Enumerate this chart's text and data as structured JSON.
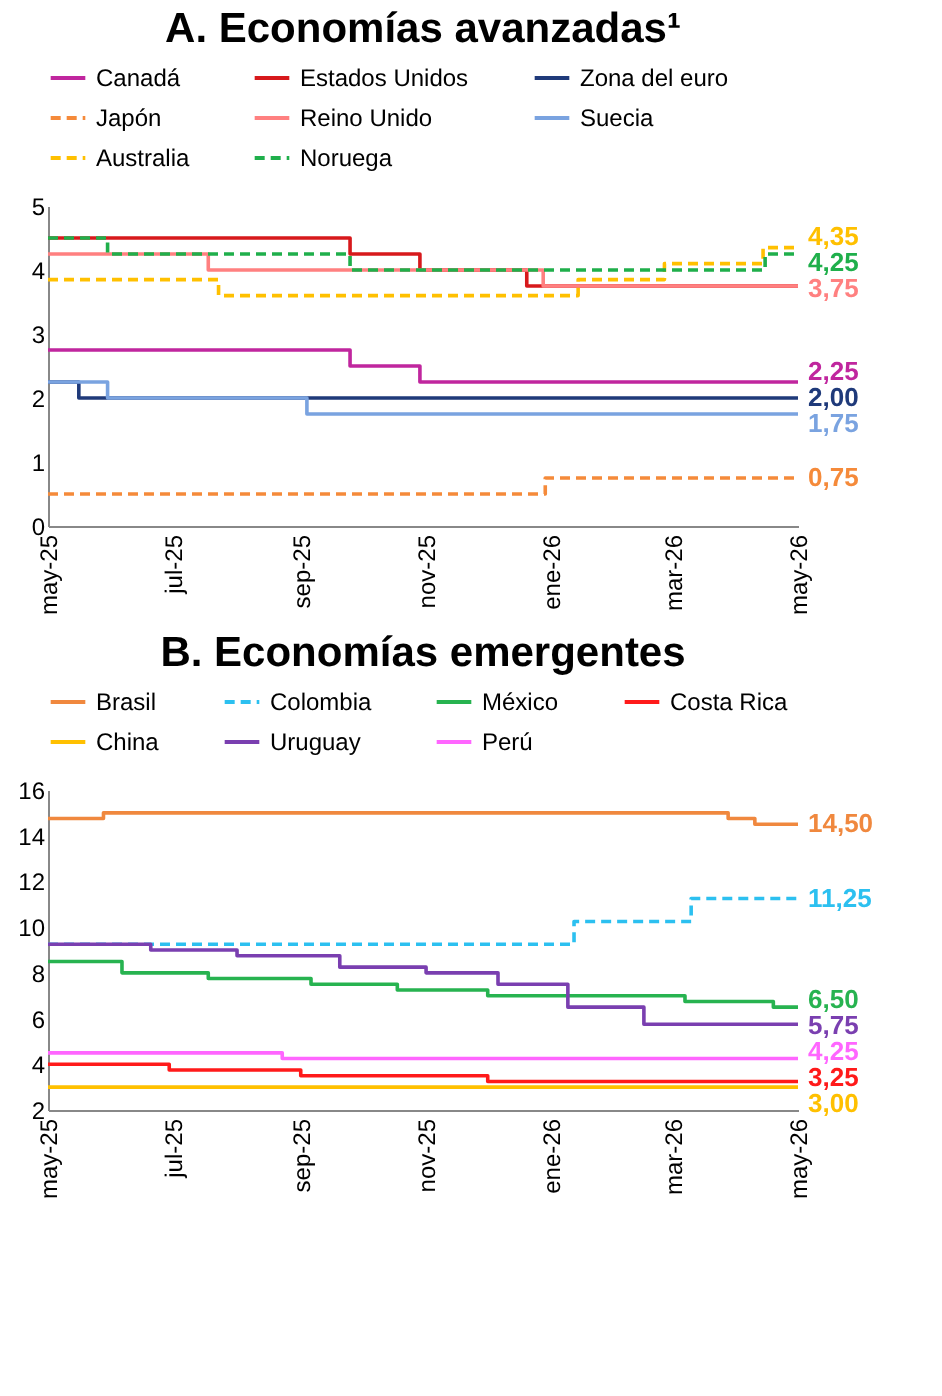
{
  "chart_data": [
    {
      "type": "step",
      "title": "A.   Economías avanzadas¹",
      "xlim": [
        "2025-05-01",
        "2026-05-01"
      ],
      "ylim": [
        0,
        5
      ],
      "yticks": [
        0,
        1,
        2,
        3,
        4,
        5
      ],
      "xticks": [
        {
          "value": "2025-05-01",
          "label": "may-25"
        },
        {
          "value": "2025-07-01",
          "label": "jul-25"
        },
        {
          "value": "2025-09-01",
          "label": "sep-25"
        },
        {
          "value": "2025-11-01",
          "label": "nov-25"
        },
        {
          "value": "2026-01-01",
          "label": "ene-26"
        },
        {
          "value": "2026-03-01",
          "label": "mar-26"
        },
        {
          "value": "2026-05-01",
          "label": "may-26"
        }
      ],
      "grid": false,
      "legend": "top",
      "series": [
        {
          "name": "Canadá",
          "color": "#c0269e",
          "line_style": "solid",
          "x": [
            "2025-05-01",
            "2025-09-25",
            "2025-10-29",
            "2026-05-01"
          ],
          "values": [
            2.75,
            2.5,
            2.25,
            2.25
          ],
          "value_labels": [
            null,
            null,
            null,
            "2,25"
          ]
        },
        {
          "name": "Estados Unidos",
          "color": "#d7191c",
          "line_style": "solid",
          "x": [
            "2025-05-01",
            "2025-09-25",
            "2025-10-29",
            "2025-12-20",
            "2026-05-01"
          ],
          "values": [
            4.5,
            4.25,
            4.0,
            3.75,
            3.75
          ],
          "value_labels": [
            null,
            null,
            null,
            null,
            null
          ]
        },
        {
          "name": "Zona del euro",
          "color": "#1f3a7a",
          "line_style": "solid",
          "x": [
            "2025-05-01",
            "2025-05-16",
            "2026-05-01"
          ],
          "values": [
            2.25,
            2.0,
            2.0
          ],
          "value_labels": [
            null,
            null,
            "2,00"
          ]
        },
        {
          "name": "Japón",
          "color": "#f58a3a",
          "line_style": "dashed",
          "x": [
            "2025-05-01",
            "2025-12-29",
            "2026-05-01"
          ],
          "values": [
            0.5,
            0.75,
            0.75
          ],
          "value_labels": [
            null,
            null,
            "0,75"
          ]
        },
        {
          "name": "Reino Unido",
          "color": "#ff8080",
          "line_style": "solid",
          "x": [
            "2025-05-01",
            "2025-07-18",
            "2025-12-28",
            "2026-05-01"
          ],
          "values": [
            4.25,
            4.0,
            3.75,
            3.75
          ],
          "value_labels": [
            null,
            null,
            null,
            "3,75"
          ]
        },
        {
          "name": "Suecia",
          "color": "#7aa3e0",
          "line_style": "solid",
          "x": [
            "2025-05-01",
            "2025-05-30",
            "2025-09-04",
            "2026-05-01"
          ],
          "values": [
            2.25,
            2.0,
            1.75,
            1.75
          ],
          "value_labels": [
            null,
            null,
            null,
            "1,75"
          ]
        },
        {
          "name": "Australia",
          "color": "#ffc000",
          "line_style": "dashed",
          "x": [
            "2025-05-01",
            "2025-07-23",
            "2026-01-14",
            "2026-02-25",
            "2026-04-14",
            "2026-05-01"
          ],
          "values": [
            3.85,
            3.6,
            3.85,
            4.1,
            4.35,
            4.35
          ],
          "value_labels": [
            null,
            null,
            null,
            null,
            null,
            "4,35"
          ]
        },
        {
          "name": "Noruega",
          "color": "#1faf4b",
          "line_style": "dashed",
          "x": [
            "2025-05-01",
            "2025-05-30",
            "2025-09-25",
            "2026-04-15",
            "2026-05-01"
          ],
          "values": [
            4.5,
            4.25,
            4.0,
            4.25,
            4.25
          ],
          "value_labels": [
            null,
            null,
            null,
            null,
            "4,25"
          ]
        }
      ]
    },
    {
      "type": "step",
      "title": "B.   Economías emergentes",
      "xlim": [
        "2025-05-01",
        "2026-05-01"
      ],
      "ylim": [
        2,
        16
      ],
      "yticks": [
        2,
        4,
        6,
        8,
        10,
        12,
        14,
        16
      ],
      "xticks": [
        {
          "value": "2025-05-01",
          "label": "may-25"
        },
        {
          "value": "2025-07-01",
          "label": "jul-25"
        },
        {
          "value": "2025-09-01",
          "label": "sep-25"
        },
        {
          "value": "2025-11-01",
          "label": "nov-25"
        },
        {
          "value": "2026-01-01",
          "label": "ene-26"
        },
        {
          "value": "2026-03-01",
          "label": "mar-26"
        },
        {
          "value": "2026-05-01",
          "label": "may-26"
        }
      ],
      "grid": false,
      "legend": "top",
      "series": [
        {
          "name": "Brasil",
          "color": "#f0883e",
          "line_style": "solid",
          "x": [
            "2025-05-01",
            "2025-05-28",
            "2026-03-28",
            "2026-04-10",
            "2026-05-01"
          ],
          "values": [
            14.75,
            15.0,
            14.75,
            14.5,
            14.5
          ],
          "value_labels": [
            null,
            null,
            null,
            null,
            "14,50"
          ]
        },
        {
          "name": "Colombia",
          "color": "#2cc0f0",
          "line_style": "dashed",
          "x": [
            "2025-05-01",
            "2026-01-12",
            "2026-03-10",
            "2026-05-01"
          ],
          "values": [
            9.25,
            10.25,
            11.25,
            11.25
          ],
          "value_labels": [
            null,
            null,
            null,
            "11,25"
          ]
        },
        {
          "name": "México",
          "color": "#27b350",
          "line_style": "solid",
          "x": [
            "2025-05-01",
            "2025-06-06",
            "2025-07-18",
            "2025-09-06",
            "2025-10-18",
            "2025-12-01",
            "2026-03-07",
            "2026-04-19",
            "2026-05-01"
          ],
          "values": [
            8.5,
            8.0,
            7.75,
            7.5,
            7.25,
            7.0,
            6.75,
            6.5,
            6.5
          ],
          "value_labels": [
            null,
            null,
            null,
            null,
            null,
            null,
            null,
            null,
            "6,50"
          ]
        },
        {
          "name": "Costa Rica",
          "color": "#ff1a1a",
          "line_style": "solid",
          "x": [
            "2025-05-01",
            "2025-06-29",
            "2025-09-01",
            "2025-12-01",
            "2026-05-01"
          ],
          "values": [
            4.0,
            3.75,
            3.5,
            3.25,
            3.25
          ],
          "value_labels": [
            null,
            null,
            null,
            null,
            "3,25"
          ]
        },
        {
          "name": "China",
          "color": "#ffc000",
          "line_style": "solid",
          "x": [
            "2025-05-01",
            "2026-05-01"
          ],
          "values": [
            3.0,
            3.0
          ],
          "value_labels": [
            null,
            "3,00"
          ]
        },
        {
          "name": "Uruguay",
          "color": "#7a3fb0",
          "line_style": "solid",
          "x": [
            "2025-05-01",
            "2025-06-20",
            "2025-08-01",
            "2025-09-20",
            "2025-11-01",
            "2025-12-06",
            "2026-01-09",
            "2026-02-15",
            "2026-05-01"
          ],
          "values": [
            9.25,
            9.0,
            8.75,
            8.25,
            8.0,
            7.5,
            6.5,
            5.75,
            5.75
          ],
          "value_labels": [
            null,
            null,
            null,
            null,
            null,
            null,
            null,
            null,
            "5,75"
          ]
        },
        {
          "name": "Perú",
          "color": "#ff66ff",
          "line_style": "solid",
          "x": [
            "2025-05-01",
            "2025-08-23",
            "2026-05-01"
          ],
          "values": [
            4.5,
            4.25,
            4.25
          ],
          "value_labels": [
            null,
            null,
            "4,25"
          ]
        }
      ]
    }
  ]
}
